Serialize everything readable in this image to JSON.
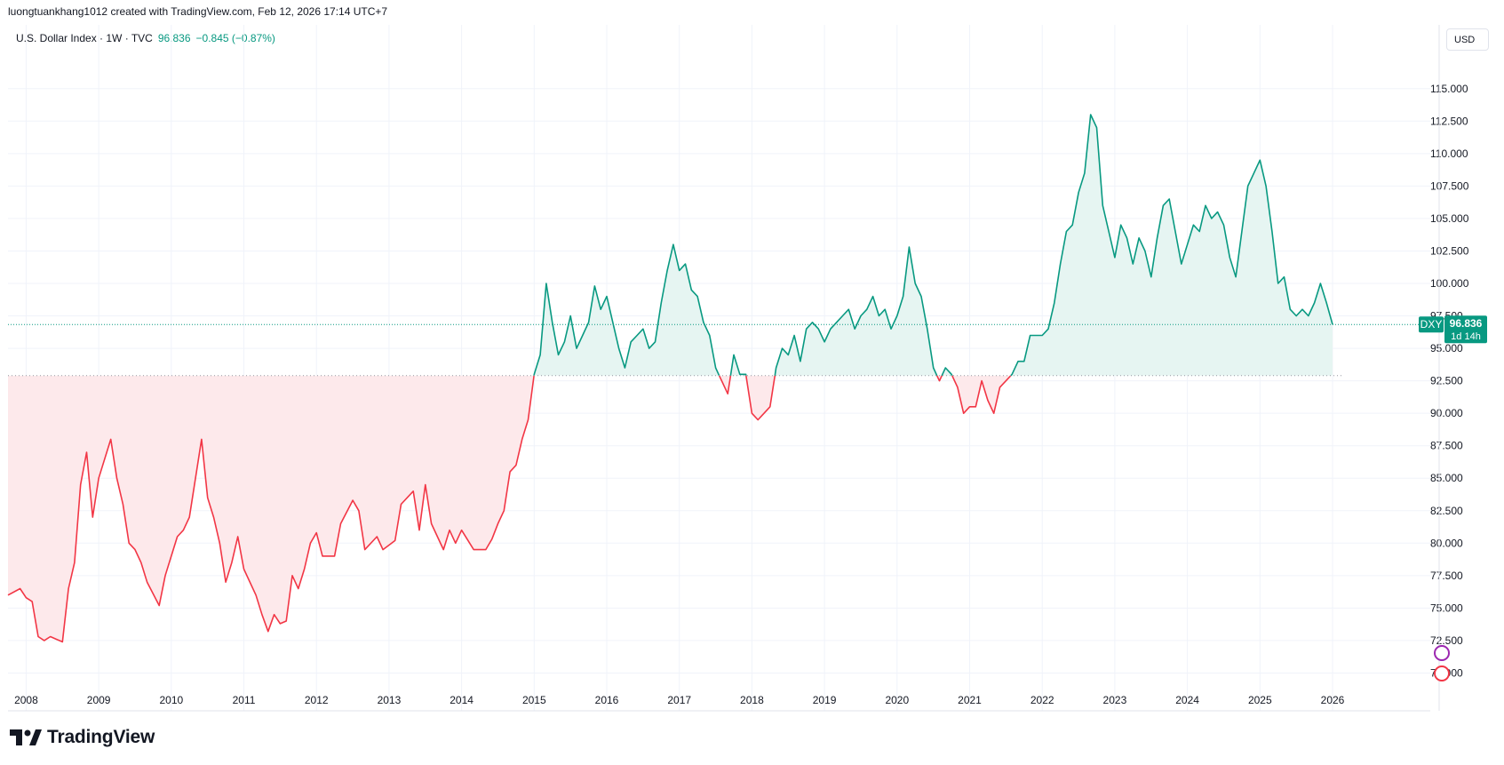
{
  "header": {
    "author_line": "luongtuankhang1012 created with TradingView.com, Feb 12, 2026 17:14 UTC+7"
  },
  "legend": {
    "symbol_line": "U.S. Dollar Index · 1W · TVC",
    "price": "96.836",
    "change": "−0.845 (−0.87%)"
  },
  "currency_button": "USD",
  "price_label": {
    "ticker": "DXY",
    "price": "96.836",
    "countdown": "1d 14h"
  },
  "brand": {
    "name": "TradingView"
  },
  "colors": {
    "up": "#089981",
    "down": "#f23645",
    "up_fill": "#e6f5f2",
    "down_fill": "#fde9eb",
    "grid": "#f0f3fa",
    "text": "#131722"
  },
  "chart_data": {
    "type": "area",
    "title": "U.S. Dollar Index · 1W · TVC",
    "xlabel": "",
    "ylabel": "",
    "x_ticks": [
      "2008",
      "2009",
      "2010",
      "2011",
      "2012",
      "2013",
      "2014",
      "2015",
      "2016",
      "2017",
      "2018",
      "2019",
      "2020",
      "2021",
      "2022",
      "2023",
      "2024",
      "2025",
      "2026"
    ],
    "y_ticks": [
      "70.000",
      "72.500",
      "75.000",
      "77.500",
      "80.000",
      "82.500",
      "85.000",
      "87.500",
      "90.000",
      "92.500",
      "95.000",
      "97.500",
      "100.000",
      "102.500",
      "105.000",
      "107.500",
      "110.000",
      "112.500",
      "115.000"
    ],
    "xlim": [
      "2007-10",
      "2026-01"
    ],
    "ylim": [
      67.5,
      119.5
    ],
    "baseline": 92.9,
    "last_value": 96.836,
    "grid": true,
    "series": [
      {
        "values": [
          [
            "2007-10",
            76.0
          ],
          [
            "2007-12",
            76.5
          ],
          [
            "2008-01",
            75.8
          ],
          [
            "2008-02",
            75.5
          ],
          [
            "2008-03",
            72.8
          ],
          [
            "2008-04",
            72.5
          ],
          [
            "2008-05",
            72.8
          ],
          [
            "2008-06",
            72.6
          ],
          [
            "2008-07",
            72.4
          ],
          [
            "2008-08",
            76.5
          ],
          [
            "2008-09",
            78.5
          ],
          [
            "2008-10",
            84.5
          ],
          [
            "2008-11",
            87.0
          ],
          [
            "2008-12",
            82.0
          ],
          [
            "2009-01",
            85.0
          ],
          [
            "2009-03",
            88.0
          ],
          [
            "2009-04",
            85.0
          ],
          [
            "2009-05",
            83.0
          ],
          [
            "2009-06",
            80.0
          ],
          [
            "2009-07",
            79.5
          ],
          [
            "2009-08",
            78.5
          ],
          [
            "2009-09",
            77.0
          ],
          [
            "2009-11",
            75.2
          ],
          [
            "2009-12",
            77.5
          ],
          [
            "2010-02",
            80.5
          ],
          [
            "2010-03",
            81.0
          ],
          [
            "2010-04",
            82.0
          ],
          [
            "2010-06",
            88.0
          ],
          [
            "2010-07",
            83.5
          ],
          [
            "2010-08",
            82.0
          ],
          [
            "2010-09",
            80.0
          ],
          [
            "2010-10",
            77.0
          ],
          [
            "2010-11",
            78.5
          ],
          [
            "2010-12",
            80.5
          ],
          [
            "2011-01",
            78.0
          ],
          [
            "2011-03",
            76.0
          ],
          [
            "2011-04",
            74.5
          ],
          [
            "2011-05",
            73.2
          ],
          [
            "2011-06",
            74.5
          ],
          [
            "2011-07",
            73.8
          ],
          [
            "2011-08",
            74.0
          ],
          [
            "2011-09",
            77.5
          ],
          [
            "2011-10",
            76.5
          ],
          [
            "2011-11",
            78.0
          ],
          [
            "2011-12",
            80.0
          ],
          [
            "2012-01",
            80.8
          ],
          [
            "2012-02",
            79.0
          ],
          [
            "2012-04",
            79.0
          ],
          [
            "2012-05",
            81.5
          ],
          [
            "2012-07",
            83.3
          ],
          [
            "2012-08",
            82.5
          ],
          [
            "2012-09",
            79.5
          ],
          [
            "2012-11",
            80.5
          ],
          [
            "2012-12",
            79.5
          ],
          [
            "2013-02",
            80.2
          ],
          [
            "2013-03",
            83.0
          ],
          [
            "2013-05",
            84.0
          ],
          [
            "2013-06",
            81.0
          ],
          [
            "2013-07",
            84.5
          ],
          [
            "2013-08",
            81.5
          ],
          [
            "2013-10",
            79.5
          ],
          [
            "2013-11",
            81.0
          ],
          [
            "2013-12",
            80.0
          ],
          [
            "2014-01",
            81.0
          ],
          [
            "2014-03",
            79.5
          ],
          [
            "2014-05",
            79.5
          ],
          [
            "2014-06",
            80.3
          ],
          [
            "2014-07",
            81.5
          ],
          [
            "2014-08",
            82.5
          ],
          [
            "2014-09",
            85.5
          ],
          [
            "2014-10",
            86.0
          ],
          [
            "2014-11",
            88.0
          ],
          [
            "2014-12",
            89.5
          ],
          [
            "2015-01",
            93.0
          ],
          [
            "2015-02",
            94.5
          ],
          [
            "2015-03",
            100.0
          ],
          [
            "2015-04",
            97.0
          ],
          [
            "2015-05",
            94.5
          ],
          [
            "2015-06",
            95.5
          ],
          [
            "2015-07",
            97.5
          ],
          [
            "2015-08",
            95.0
          ],
          [
            "2015-09",
            96.0
          ],
          [
            "2015-10",
            97.0
          ],
          [
            "2015-11",
            99.8
          ],
          [
            "2015-12",
            98.0
          ],
          [
            "2016-01",
            99.0
          ],
          [
            "2016-02",
            97.0
          ],
          [
            "2016-03",
            95.0
          ],
          [
            "2016-04",
            93.5
          ],
          [
            "2016-05",
            95.5
          ],
          [
            "2016-06",
            96.0
          ],
          [
            "2016-07",
            96.5
          ],
          [
            "2016-08",
            95.0
          ],
          [
            "2016-09",
            95.5
          ],
          [
            "2016-10",
            98.5
          ],
          [
            "2016-11",
            101.0
          ],
          [
            "2016-12",
            103.0
          ],
          [
            "2017-01",
            101.0
          ],
          [
            "2017-02",
            101.5
          ],
          [
            "2017-03",
            99.5
          ],
          [
            "2017-04",
            99.0
          ],
          [
            "2017-05",
            97.0
          ],
          [
            "2017-06",
            96.0
          ],
          [
            "2017-07",
            93.5
          ],
          [
            "2017-08",
            92.5
          ],
          [
            "2017-09",
            91.5
          ],
          [
            "2017-10",
            94.5
          ],
          [
            "2017-11",
            93.0
          ],
          [
            "2017-12",
            93.0
          ],
          [
            "2018-01",
            90.0
          ],
          [
            "2018-02",
            89.5
          ],
          [
            "2018-03",
            90.0
          ],
          [
            "2018-04",
            90.5
          ],
          [
            "2018-05",
            93.5
          ],
          [
            "2018-06",
            95.0
          ],
          [
            "2018-07",
            94.5
          ],
          [
            "2018-08",
            96.0
          ],
          [
            "2018-09",
            94.0
          ],
          [
            "2018-10",
            96.5
          ],
          [
            "2018-11",
            97.0
          ],
          [
            "2018-12",
            96.5
          ],
          [
            "2019-01",
            95.5
          ],
          [
            "2019-02",
            96.5
          ],
          [
            "2019-03",
            97.0
          ],
          [
            "2019-04",
            97.5
          ],
          [
            "2019-05",
            98.0
          ],
          [
            "2019-06",
            96.5
          ],
          [
            "2019-07",
            97.5
          ],
          [
            "2019-08",
            98.0
          ],
          [
            "2019-09",
            99.0
          ],
          [
            "2019-10",
            97.5
          ],
          [
            "2019-11",
            98.0
          ],
          [
            "2019-12",
            96.5
          ],
          [
            "2020-01",
            97.5
          ],
          [
            "2020-02",
            99.0
          ],
          [
            "2020-03",
            102.8
          ],
          [
            "2020-04",
            100.0
          ],
          [
            "2020-05",
            99.0
          ],
          [
            "2020-06",
            96.5
          ],
          [
            "2020-07",
            93.5
          ],
          [
            "2020-08",
            92.5
          ],
          [
            "2020-09",
            93.5
          ],
          [
            "2020-10",
            93.0
          ],
          [
            "2020-11",
            92.0
          ],
          [
            "2020-12",
            90.0
          ],
          [
            "2021-01",
            90.5
          ],
          [
            "2021-02",
            90.5
          ],
          [
            "2021-03",
            92.5
          ],
          [
            "2021-04",
            91.0
          ],
          [
            "2021-05",
            90.0
          ],
          [
            "2021-06",
            92.0
          ],
          [
            "2021-07",
            92.5
          ],
          [
            "2021-08",
            93.0
          ],
          [
            "2021-09",
            94.0
          ],
          [
            "2021-10",
            94.0
          ],
          [
            "2021-11",
            96.0
          ],
          [
            "2021-12",
            96.0
          ],
          [
            "2022-01",
            96.0
          ],
          [
            "2022-02",
            96.5
          ],
          [
            "2022-03",
            98.5
          ],
          [
            "2022-04",
            101.5
          ],
          [
            "2022-05",
            104.0
          ],
          [
            "2022-06",
            104.5
          ],
          [
            "2022-07",
            107.0
          ],
          [
            "2022-08",
            108.5
          ],
          [
            "2022-09",
            113.0
          ],
          [
            "2022-10",
            112.0
          ],
          [
            "2022-11",
            106.0
          ],
          [
            "2022-12",
            104.0
          ],
          [
            "2023-01",
            102.0
          ],
          [
            "2023-02",
            104.5
          ],
          [
            "2023-03",
            103.5
          ],
          [
            "2023-04",
            101.5
          ],
          [
            "2023-05",
            103.5
          ],
          [
            "2023-06",
            102.5
          ],
          [
            "2023-07",
            100.5
          ],
          [
            "2023-08",
            103.5
          ],
          [
            "2023-09",
            106.0
          ],
          [
            "2023-10",
            106.5
          ],
          [
            "2023-11",
            104.0
          ],
          [
            "2023-12",
            101.5
          ],
          [
            "2024-01",
            103.0
          ],
          [
            "2024-02",
            104.5
          ],
          [
            "2024-03",
            104.0
          ],
          [
            "2024-04",
            106.0
          ],
          [
            "2024-05",
            105.0
          ],
          [
            "2024-06",
            105.5
          ],
          [
            "2024-07",
            104.5
          ],
          [
            "2024-08",
            102.0
          ],
          [
            "2024-09",
            100.5
          ],
          [
            "2024-10",
            104.0
          ],
          [
            "2024-11",
            107.5
          ],
          [
            "2024-12",
            108.5
          ],
          [
            "2025-01",
            109.5
          ],
          [
            "2025-02",
            107.5
          ],
          [
            "2025-03",
            104.0
          ],
          [
            "2025-04",
            100.0
          ],
          [
            "2025-05",
            100.5
          ],
          [
            "2025-06",
            98.0
          ],
          [
            "2025-07",
            97.5
          ],
          [
            "2025-08",
            98.0
          ],
          [
            "2025-09",
            97.5
          ],
          [
            "2025-10",
            98.5
          ],
          [
            "2025-11",
            100.0
          ],
          [
            "2025-12",
            98.5
          ],
          [
            "2026-01",
            96.836
          ]
        ]
      }
    ]
  }
}
